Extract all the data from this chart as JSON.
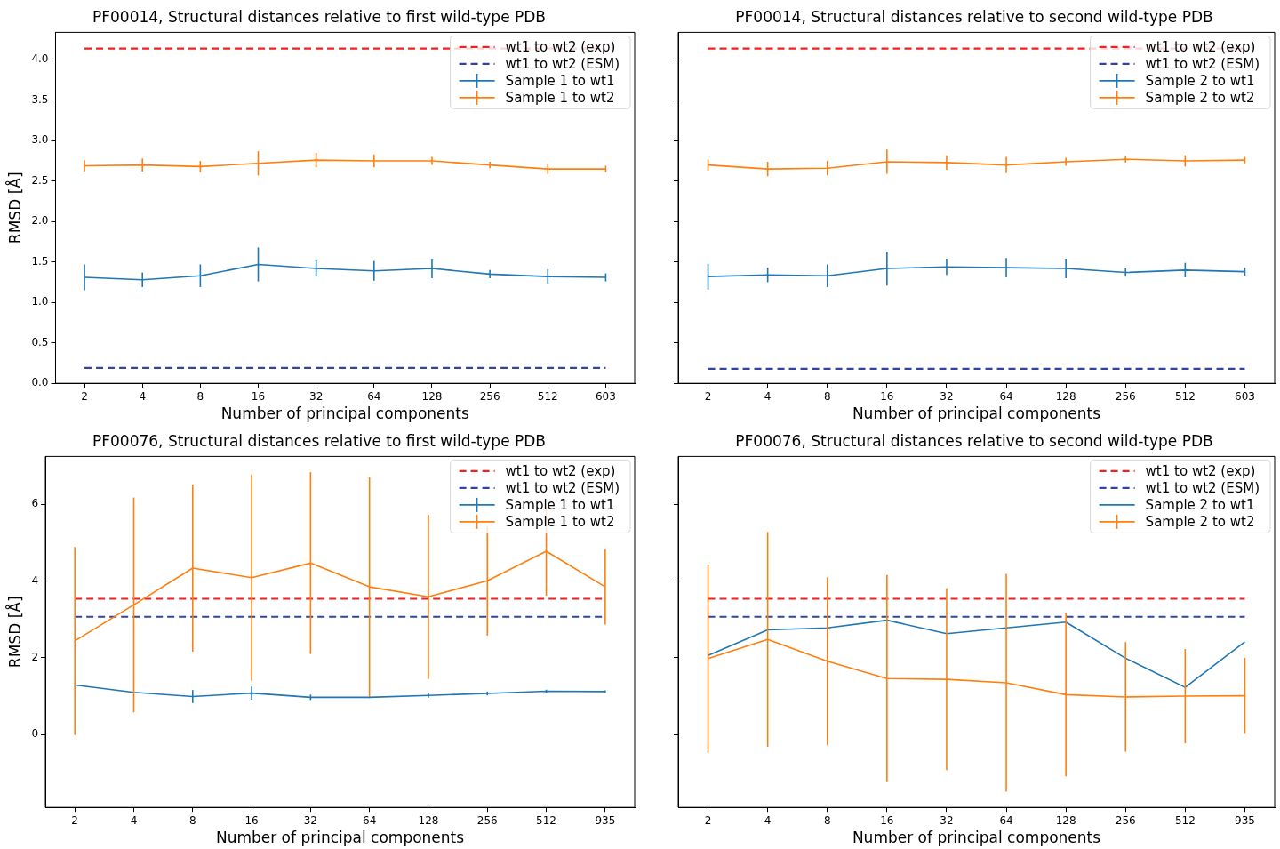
{
  "chart_data": [
    {
      "type": "line",
      "title": "PF00014, Structural distances relative to first wild-type PDB",
      "xlabel": "Number of principal components",
      "ylabel": "RMSD [Å]",
      "categories": [
        "2",
        "4",
        "8",
        "16",
        "32",
        "64",
        "128",
        "256",
        "512",
        "603"
      ],
      "ylim": [
        0,
        4.34
      ],
      "yticks": [
        {
          "value": 0,
          "label": "0.0"
        },
        0.5,
        {
          "value": 1,
          "label": "1.0"
        },
        1.5,
        {
          "value": 2,
          "label": "2.0"
        },
        2.5,
        {
          "value": 3,
          "label": "3.0"
        },
        3.5,
        {
          "value": 4,
          "label": "4.0"
        }
      ],
      "grid": false,
      "legend": "top right",
      "ref_lines": [
        {
          "axis": "y",
          "value": 4.14,
          "label": "wt1 to wt2 (exp)",
          "color": "#ee2222",
          "line_style": "dashed"
        },
        {
          "axis": "y",
          "value": 0.19,
          "label": "wt1 to wt2 (ESM)",
          "color": "#3344a0",
          "line_style": "dashed"
        }
      ],
      "series": [
        {
          "name": "Sample 1 to wt1",
          "color": "#1f77b4",
          "values": [
            1.31,
            1.28,
            1.33,
            1.47,
            1.42,
            1.39,
            1.42,
            1.35,
            1.32,
            1.31
          ],
          "errors": [
            0.16,
            0.09,
            0.14,
            0.21,
            0.1,
            0.12,
            0.12,
            0.05,
            0.09,
            0.05
          ]
        },
        {
          "name": "Sample 1 to wt2",
          "color": "#ff7f0e",
          "values": [
            2.69,
            2.7,
            2.68,
            2.72,
            2.76,
            2.75,
            2.75,
            2.7,
            2.65,
            2.65
          ],
          "errors": [
            0.07,
            0.08,
            0.07,
            0.15,
            0.09,
            0.08,
            0.05,
            0.04,
            0.06,
            0.04
          ]
        }
      ]
    },
    {
      "type": "line",
      "title": "PF00014, Structural distances relative to second wild-type PDB",
      "xlabel": "Number of principal components",
      "categories": [
        "2",
        "4",
        "8",
        "16",
        "32",
        "64",
        "128",
        "256",
        "512",
        "603"
      ],
      "ylim": [
        0,
        4.34
      ],
      "yticks": [
        0,
        0.5,
        1,
        1.5,
        2,
        2.5,
        3,
        3.5,
        4
      ],
      "tick_labels": "x",
      "grid": false,
      "legend": "top right",
      "ref_lines": [
        {
          "axis": "y",
          "value": 4.14,
          "label": "wt1 to wt2 (exp)",
          "color": "#ee2222",
          "line_style": "dashed"
        },
        {
          "axis": "y",
          "value": 0.18,
          "label": "wt1 to wt2 (ESM)",
          "color": "#3344a0",
          "line_style": "dashed"
        }
      ],
      "series": [
        {
          "name": "Sample 2 to wt1",
          "color": "#1f77b4",
          "values": [
            1.32,
            1.34,
            1.33,
            1.42,
            1.44,
            1.43,
            1.42,
            1.37,
            1.4,
            1.38
          ],
          "errors": [
            0.16,
            0.09,
            0.14,
            0.21,
            0.1,
            0.12,
            0.12,
            0.05,
            0.09,
            0.05
          ]
        },
        {
          "name": "Sample 2 to wt2",
          "color": "#ff7f0e",
          "values": [
            2.7,
            2.65,
            2.66,
            2.74,
            2.73,
            2.7,
            2.74,
            2.77,
            2.75,
            2.76
          ],
          "errors": [
            0.07,
            0.09,
            0.09,
            0.15,
            0.09,
            0.1,
            0.05,
            0.04,
            0.07,
            0.04
          ]
        }
      ]
    },
    {
      "type": "line",
      "title": "PF00076, Structural distances relative to first wild-type PDB",
      "xlabel": "Number of principal components",
      "ylabel": "RMSD [Å]",
      "categories": [
        "2",
        "4",
        "8",
        "16",
        "32",
        "64",
        "128",
        "256",
        "512",
        "935"
      ],
      "ylim": [
        -1.9,
        7.25
      ],
      "yticks": [
        0,
        2,
        4,
        6
      ],
      "grid": false,
      "legend": "top right",
      "ref_lines": [
        {
          "axis": "y",
          "value": 3.54,
          "label": "wt1 to wt2 (exp)",
          "color": "#ee2222",
          "line_style": "dashed"
        },
        {
          "axis": "y",
          "value": 3.07,
          "label": "wt1 to wt2 (ESM)",
          "color": "#3344a0",
          "line_style": "dashed"
        }
      ],
      "series": [
        {
          "name": "Sample 1 to wt1",
          "color": "#1f77b4",
          "values": [
            1.29,
            1.1,
            0.99,
            1.08,
            0.97,
            0.97,
            1.02,
            1.07,
            1.13,
            1.12
          ],
          "errors": [
            null,
            null,
            0.17,
            0.17,
            0.07,
            0.02,
            0.06,
            0.05,
            0.04,
            0.03
          ]
        },
        {
          "name": "Sample 1 to wt2",
          "color": "#ff7f0e",
          "values": [
            2.44,
            3.38,
            4.34,
            4.09,
            4.47,
            3.85,
            3.59,
            4.01,
            4.78,
            3.85
          ],
          "errors": [
            2.45,
            2.8,
            2.18,
            2.69,
            2.37,
            2.86,
            2.14,
            1.43,
            1.16,
            0.98
          ]
        }
      ]
    },
    {
      "type": "line",
      "title": "PF00076, Structural distances relative to second wild-type PDB",
      "xlabel": "Number of principal components",
      "categories": [
        "2",
        "4",
        "8",
        "16",
        "32",
        "64",
        "128",
        "256",
        "512",
        "935"
      ],
      "ylim": [
        -1.9,
        7.25
      ],
      "yticks": [
        0,
        2,
        4,
        6
      ],
      "tick_labels": "x",
      "grid": false,
      "legend": "top right",
      "ref_lines": [
        {
          "axis": "y",
          "value": 3.54,
          "label": "wt1 to wt2 (exp)",
          "color": "#ee2222",
          "line_style": "dashed"
        },
        {
          "axis": "y",
          "value": 3.07,
          "label": "wt1 to wt2 (ESM)",
          "color": "#3344a0",
          "line_style": "dashed"
        }
      ],
      "series": [
        {
          "name": "Sample 2 to wt1",
          "color": "#1f77b4",
          "values": [
            2.06,
            2.73,
            2.78,
            2.98,
            2.63,
            2.78,
            2.93,
            1.99,
            1.23,
            2.42
          ]
        },
        {
          "name": "Sample 2 to wt2",
          "color": "#ff7f0e",
          "values": [
            1.98,
            2.48,
            1.91,
            1.46,
            1.44,
            1.35,
            1.04,
            0.98,
            1.0,
            1.01
          ],
          "errors": [
            2.45,
            2.8,
            2.19,
            2.7,
            2.37,
            2.84,
            2.13,
            1.43,
            1.23,
            0.99
          ]
        }
      ]
    }
  ]
}
